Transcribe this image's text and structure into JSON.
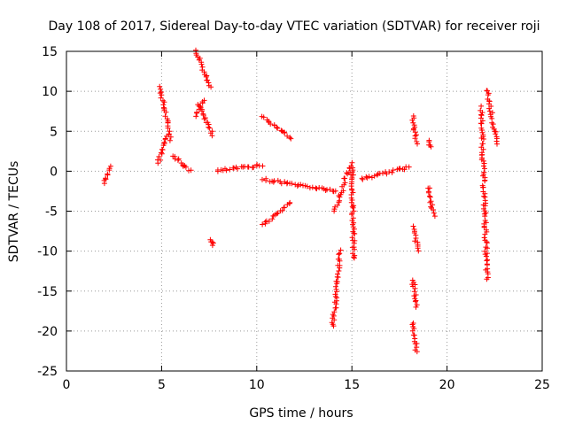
{
  "chart_data": {
    "type": "scatter",
    "title": "Day 108 of 2017, Sidereal Day-to-day VTEC variation (SDTVAR) for receiver roji",
    "xlabel": "GPS time / hours",
    "ylabel": "SDTVAR / TECUs",
    "xlim": [
      0,
      25
    ],
    "ylim": [
      -25,
      15
    ],
    "xticks": [
      0,
      5,
      10,
      15,
      20,
      25
    ],
    "yticks": [
      -25,
      -20,
      -15,
      -10,
      -5,
      0,
      5,
      10,
      15
    ],
    "grid": true,
    "marker": "+",
    "color": "#ff0000",
    "segments": [
      {
        "x": [
          2.0,
          2.3
        ],
        "y": [
          -1.5,
          0.5
        ]
      },
      {
        "x": [
          4.8,
          5.3
        ],
        "y": [
          1.0,
          4.5
        ]
      },
      {
        "x": [
          4.9,
          5.5
        ],
        "y": [
          10.5,
          4.0
        ]
      },
      {
        "x": [
          5.6,
          6.5
        ],
        "y": [
          2.0,
          0.0
        ]
      },
      {
        "x": [
          6.8,
          7.6
        ],
        "y": [
          15.0,
          10.5
        ]
      },
      {
        "x": [
          6.8,
          7.2
        ],
        "y": [
          7.0,
          9.0
        ]
      },
      {
        "x": [
          6.9,
          7.7
        ],
        "y": [
          8.5,
          4.5
        ]
      },
      {
        "x": [
          7.6,
          7.7
        ],
        "y": [
          -8.5,
          -9.3
        ]
      },
      {
        "x": [
          7.9,
          10.3
        ],
        "y": [
          0.0,
          0.8
        ]
      },
      {
        "x": [
          10.3,
          11.8
        ],
        "y": [
          6.8,
          4.2
        ]
      },
      {
        "x": [
          10.3,
          11.8
        ],
        "y": [
          -6.8,
          -4.0
        ]
      },
      {
        "x": [
          10.3,
          14.2
        ],
        "y": [
          -1.0,
          -2.5
        ]
      },
      {
        "x": [
          14.0,
          14.4
        ],
        "y": [
          -19.5,
          -10.0
        ]
      },
      {
        "x": [
          14.1,
          14.6
        ],
        "y": [
          -5.0,
          -1.5
        ]
      },
      {
        "x": [
          14.6,
          15.0
        ],
        "y": [
          -1.0,
          1.0
        ]
      },
      {
        "x": [
          15.0,
          15.1
        ],
        "y": [
          0.5,
          -11.0
        ]
      },
      {
        "x": [
          15.5,
          18.0
        ],
        "y": [
          -1.0,
          0.5
        ]
      },
      {
        "x": [
          18.2,
          18.4
        ],
        "y": [
          7.0,
          3.5
        ]
      },
      {
        "x": [
          18.2,
          18.5
        ],
        "y": [
          -7.0,
          -10.0
        ]
      },
      {
        "x": [
          18.2,
          18.4
        ],
        "y": [
          -13.5,
          -17.0
        ]
      },
      {
        "x": [
          18.2,
          18.4
        ],
        "y": [
          -19.0,
          -22.5
        ]
      },
      {
        "x": [
          19.0,
          19.2
        ],
        "y": [
          3.8,
          3.0
        ]
      },
      {
        "x": [
          19.0,
          19.3
        ],
        "y": [
          -2.0,
          -5.5
        ]
      },
      {
        "x": [
          21.8,
          22.1
        ],
        "y": [
          8.0,
          -13.5
        ]
      },
      {
        "x": [
          22.1,
          22.6
        ],
        "y": [
          10.2,
          3.5
        ]
      }
    ]
  }
}
